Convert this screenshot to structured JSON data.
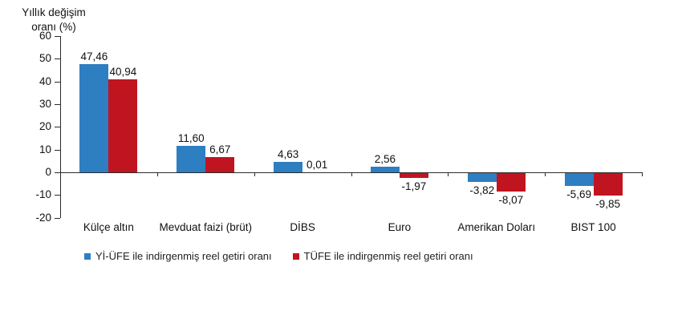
{
  "title_lines": [
    "Yıllık değişim",
    "oranı (%)"
  ],
  "chart_data": {
    "type": "bar",
    "title": "Yıllık değişim oranı (%)",
    "xlabel": "",
    "ylabel": "Yıllık değişim oranı (%)",
    "categories": [
      "Külçe altın",
      "Mevduat faizi (brüt)",
      "DİBS",
      "Euro",
      "Amerikan Doları",
      "BIST 100"
    ],
    "series": [
      {
        "name": "Yİ-ÜFE ile indirgenmiş reel getiri oranı",
        "color": "#2E7EC2",
        "values": [
          47.46,
          11.6,
          4.63,
          2.56,
          -3.82,
          -5.69
        ],
        "labels": [
          "47,46",
          "11,60",
          "4,63",
          "2,56",
          "-3,82",
          "-5,69"
        ]
      },
      {
        "name": "TÜFE ile indirgenmiş reel getiri oranı",
        "color": "#C01520",
        "values": [
          40.94,
          6.67,
          0.01,
          -1.97,
          -8.07,
          -9.85
        ],
        "labels": [
          "40,94",
          "6,67",
          "0,01",
          "-1,97",
          "-8,07",
          "-9,85"
        ]
      }
    ],
    "ylim": [
      -20,
      60
    ],
    "ytick_step": 10,
    "ytick_labels": [
      "60",
      "50",
      "40",
      "30",
      "20",
      "10",
      "0",
      "-10",
      "-20"
    ],
    "grid": false,
    "legend_position": "bottom"
  }
}
